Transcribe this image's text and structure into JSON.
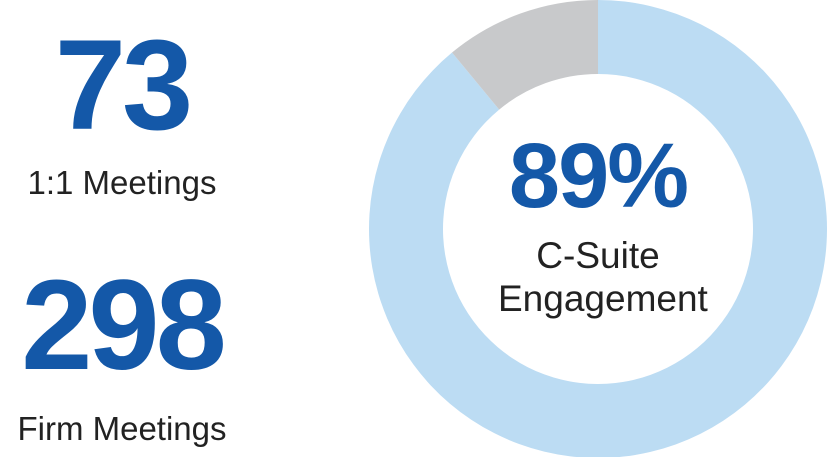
{
  "stats": [
    {
      "value": 73,
      "label": "1:1 Meetings"
    },
    {
      "value": 298,
      "label": "Firm Meetings"
    }
  ],
  "chart_data": {
    "type": "pie",
    "donut": true,
    "values": [
      89,
      11
    ],
    "value_labels": [
      "89%",
      null
    ],
    "colors": [
      "#bcdcf3",
      "#c8c9cb"
    ],
    "label": "C-Suite Engagement"
  }
}
